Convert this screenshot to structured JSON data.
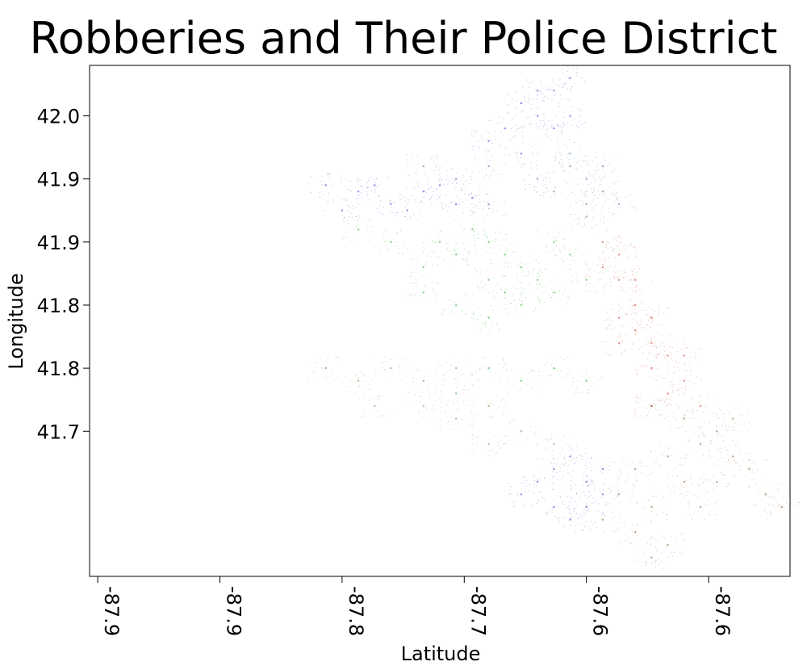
{
  "chart_data": {
    "type": "scatter",
    "title": "Robberies and Their Police District",
    "xlabel": "Latitude",
    "ylabel": "Longitude",
    "xlim": [
      -87.945,
      -87.515
    ],
    "ylim": [
      41.635,
      42.04
    ],
    "x_ticks": [
      {
        "value": -87.94,
        "label": "-87.9"
      },
      {
        "value": -87.865,
        "label": "-87.9"
      },
      {
        "value": -87.79,
        "label": "-87.8"
      },
      {
        "value": -87.715,
        "label": "-87.7"
      },
      {
        "value": -87.64,
        "label": "-87.6"
      },
      {
        "value": -87.565,
        "label": "-87.6"
      }
    ],
    "y_ticks": [
      {
        "value": 42.0,
        "label": "42.0"
      },
      {
        "value": 41.95,
        "label": "41.9"
      },
      {
        "value": 41.9,
        "label": "41.9"
      },
      {
        "value": 41.85,
        "label": "41.8"
      },
      {
        "value": 41.8,
        "label": "41.8"
      },
      {
        "value": 41.75,
        "label": "41.7"
      }
    ],
    "grid": false,
    "legend": "none",
    "series_colors": [
      "#3333cc",
      "#22aa22",
      "#cc3322",
      "#8b5a2b",
      "#336699",
      "#778844"
    ],
    "series": [
      {
        "color": "#3333cc",
        "points": [
          [
            -87.66,
            42.02
          ],
          [
            -87.65,
            42.03
          ],
          [
            -87.67,
            42.0
          ],
          [
            -87.68,
            42.01
          ],
          [
            -87.66,
            41.99
          ],
          [
            -87.65,
            42.0
          ],
          [
            -87.67,
            42.02
          ],
          [
            -87.69,
            41.99
          ],
          [
            -87.7,
            41.98
          ],
          [
            -87.68,
            41.97
          ],
          [
            -87.78,
            41.94
          ],
          [
            -87.8,
            41.945
          ],
          [
            -87.76,
            41.93
          ],
          [
            -87.74,
            41.94
          ],
          [
            -87.72,
            41.93
          ],
          [
            -87.79,
            41.925
          ],
          [
            -87.77,
            41.945
          ],
          [
            -87.75,
            41.925
          ],
          [
            -87.73,
            41.945
          ],
          [
            -87.71,
            41.935
          ],
          [
            -87.66,
            41.72
          ],
          [
            -87.64,
            41.71
          ],
          [
            -87.65,
            41.73
          ],
          [
            -87.63,
            41.7
          ],
          [
            -87.66,
            41.69
          ],
          [
            -87.67,
            41.71
          ],
          [
            -87.64,
            41.69
          ],
          [
            -87.65,
            41.68
          ],
          [
            -87.63,
            41.72
          ],
          [
            -87.68,
            41.7
          ]
        ]
      },
      {
        "color": "#22aa22",
        "points": [
          [
            -87.7,
            41.9
          ],
          [
            -87.72,
            41.89
          ],
          [
            -87.68,
            41.88
          ],
          [
            -87.66,
            41.9
          ],
          [
            -87.7,
            41.87
          ],
          [
            -87.74,
            41.88
          ],
          [
            -87.76,
            41.9
          ],
          [
            -87.78,
            41.91
          ],
          [
            -87.69,
            41.86
          ],
          [
            -87.67,
            41.87
          ],
          [
            -87.65,
            41.89
          ],
          [
            -87.71,
            41.91
          ],
          [
            -87.73,
            41.9
          ],
          [
            -87.68,
            41.85
          ],
          [
            -87.66,
            41.86
          ],
          [
            -87.74,
            41.86
          ],
          [
            -87.72,
            41.85
          ],
          [
            -87.7,
            41.84
          ],
          [
            -87.64,
            41.87
          ],
          [
            -87.69,
            41.89
          ],
          [
            -87.7,
            41.8
          ],
          [
            -87.68,
            41.79
          ],
          [
            -87.66,
            41.8
          ],
          [
            -87.72,
            41.78
          ],
          [
            -87.64,
            41.79
          ]
        ]
      },
      {
        "color": "#cc3322",
        "points": [
          [
            -87.63,
            41.9
          ],
          [
            -87.62,
            41.89
          ],
          [
            -87.63,
            41.88
          ],
          [
            -87.62,
            41.87
          ],
          [
            -87.61,
            41.85
          ],
          [
            -87.6,
            41.84
          ],
          [
            -87.61,
            41.83
          ],
          [
            -87.62,
            41.82
          ],
          [
            -87.6,
            41.82
          ],
          [
            -87.59,
            41.81
          ],
          [
            -87.6,
            41.8
          ],
          [
            -87.58,
            41.79
          ],
          [
            -87.59,
            41.78
          ],
          [
            -87.57,
            41.77
          ],
          [
            -87.6,
            41.77
          ],
          [
            -87.58,
            41.81
          ],
          [
            -87.62,
            41.84
          ],
          [
            -87.61,
            41.87
          ]
        ]
      },
      {
        "color": "#8b5a2b",
        "points": [
          [
            -87.6,
            41.77
          ],
          [
            -87.58,
            41.76
          ],
          [
            -87.56,
            41.75
          ],
          [
            -87.55,
            41.76
          ],
          [
            -87.57,
            41.74
          ],
          [
            -87.59,
            41.73
          ],
          [
            -87.61,
            41.72
          ],
          [
            -87.62,
            41.7
          ],
          [
            -87.6,
            41.69
          ],
          [
            -87.58,
            41.71
          ],
          [
            -87.63,
            41.68
          ],
          [
            -87.61,
            41.67
          ],
          [
            -87.55,
            41.73
          ],
          [
            -87.56,
            41.71
          ],
          [
            -87.54,
            41.72
          ],
          [
            -87.57,
            41.69
          ],
          [
            -87.59,
            41.66
          ],
          [
            -87.6,
            41.65
          ],
          [
            -87.52,
            41.69
          ],
          [
            -87.53,
            41.7
          ]
        ]
      },
      {
        "color": "#336699",
        "points": [
          [
            -87.65,
            41.96
          ],
          [
            -87.64,
            41.95
          ],
          [
            -87.63,
            41.94
          ],
          [
            -87.64,
            41.93
          ],
          [
            -87.66,
            41.94
          ],
          [
            -87.67,
            41.95
          ],
          [
            -87.65,
            41.97
          ],
          [
            -87.63,
            41.96
          ],
          [
            -87.62,
            41.93
          ],
          [
            -87.64,
            41.92
          ],
          [
            -87.7,
            41.96
          ],
          [
            -87.72,
            41.95
          ],
          [
            -87.74,
            41.96
          ],
          [
            -87.7,
            41.93
          ]
        ]
      },
      {
        "color": "#778844",
        "points": [
          [
            -87.72,
            41.8
          ],
          [
            -87.74,
            41.79
          ],
          [
            -87.76,
            41.8
          ],
          [
            -87.7,
            41.77
          ],
          [
            -87.72,
            41.76
          ],
          [
            -87.74,
            41.77
          ],
          [
            -87.78,
            41.79
          ],
          [
            -87.68,
            41.75
          ],
          [
            -87.66,
            41.74
          ],
          [
            -87.7,
            41.74
          ],
          [
            -87.8,
            41.8
          ],
          [
            -87.77,
            41.77
          ]
        ]
      }
    ]
  }
}
